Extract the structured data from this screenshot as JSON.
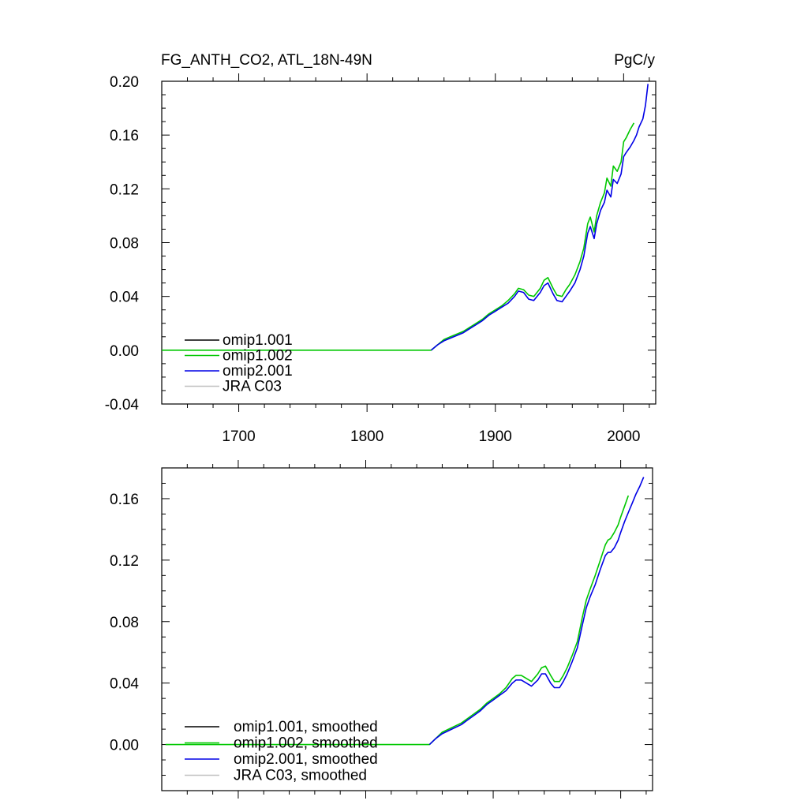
{
  "chart_data": [
    {
      "type": "line",
      "title": "FG_ANTH_CO2, ATL_18N-49N",
      "units": "PgC/y",
      "xlabel": "",
      "ylabel": "",
      "xlim": [
        1640,
        2025
      ],
      "ylim": [
        -0.04,
        0.2
      ],
      "xticks": [
        "1700",
        "1800",
        "1900",
        "2000"
      ],
      "yticks": [
        "-0.04",
        "0.00",
        "0.04",
        "0.08",
        "0.12",
        "0.16",
        "0.20"
      ],
      "legend_position": "bottom-left",
      "series": [
        {
          "name": "omip1.001",
          "color": "#000000",
          "x": [],
          "y": []
        },
        {
          "name": "omip1.002",
          "color": "#00c800",
          "x": [
            1640,
            1850,
            1855,
            1860,
            1865,
            1870,
            1875,
            1880,
            1885,
            1890,
            1895,
            1900,
            1905,
            1910,
            1915,
            1918,
            1922,
            1926,
            1930,
            1935,
            1938,
            1941,
            1945,
            1948,
            1952,
            1955,
            1958,
            1962,
            1966,
            1969,
            1972,
            1974,
            1977,
            1979,
            1982,
            1985,
            1987,
            1990,
            1992,
            1995,
            1998,
            2000,
            2002,
            2005,
            2008
          ],
          "y": [
            0.0,
            0.0,
            0.004,
            0.008,
            0.01,
            0.012,
            0.014,
            0.017,
            0.02,
            0.023,
            0.027,
            0.03,
            0.033,
            0.037,
            0.042,
            0.046,
            0.045,
            0.041,
            0.04,
            0.046,
            0.052,
            0.054,
            0.046,
            0.041,
            0.04,
            0.045,
            0.049,
            0.056,
            0.066,
            0.076,
            0.094,
            0.099,
            0.088,
            0.1,
            0.11,
            0.117,
            0.128,
            0.122,
            0.137,
            0.133,
            0.14,
            0.155,
            0.158,
            0.164,
            0.169
          ]
        },
        {
          "name": "omip2.001",
          "color": "#0000e6",
          "x": [
            1850,
            1855,
            1860,
            1865,
            1870,
            1875,
            1880,
            1885,
            1890,
            1895,
            1900,
            1905,
            1910,
            1915,
            1918,
            1922,
            1926,
            1930,
            1935,
            1938,
            1941,
            1945,
            1948,
            1952,
            1955,
            1958,
            1962,
            1966,
            1969,
            1972,
            1974,
            1977,
            1979,
            1982,
            1985,
            1987,
            1990,
            1992,
            1995,
            1998,
            2000,
            2002,
            2005,
            2008,
            2010,
            2012,
            2015,
            2017,
            2019
          ],
          "y": [
            0.0,
            0.004,
            0.007,
            0.009,
            0.011,
            0.013,
            0.016,
            0.019,
            0.022,
            0.026,
            0.029,
            0.032,
            0.035,
            0.04,
            0.044,
            0.043,
            0.038,
            0.037,
            0.043,
            0.048,
            0.05,
            0.042,
            0.037,
            0.036,
            0.04,
            0.044,
            0.05,
            0.06,
            0.07,
            0.087,
            0.092,
            0.083,
            0.094,
            0.104,
            0.11,
            0.119,
            0.114,
            0.127,
            0.124,
            0.131,
            0.144,
            0.147,
            0.151,
            0.156,
            0.16,
            0.166,
            0.172,
            0.182,
            0.198
          ]
        },
        {
          "name": "JRA C03",
          "color": "#c0c0c0",
          "x": [],
          "y": []
        }
      ]
    },
    {
      "type": "line",
      "title": "",
      "xlabel": "",
      "ylabel": "",
      "xlim": [
        1640,
        2025
      ],
      "ylim": [
        -0.03,
        0.18
      ],
      "xticks": [],
      "yticks": [
        "0.00",
        "0.04",
        "0.08",
        "0.12",
        "0.16"
      ],
      "legend_position": "bottom-left",
      "series": [
        {
          "name": "omip1.001, smoothed",
          "color": "#000000",
          "x": [],
          "y": []
        },
        {
          "name": "omip1.002, smoothed",
          "color": "#00c800",
          "x": [
            1643,
            1850,
            1855,
            1860,
            1865,
            1870,
            1875,
            1880,
            1885,
            1890,
            1895,
            1900,
            1905,
            1910,
            1915,
            1918,
            1922,
            1926,
            1930,
            1935,
            1938,
            1941,
            1945,
            1948,
            1952,
            1955,
            1958,
            1962,
            1966,
            1970,
            1973,
            1976,
            1980,
            1984,
            1988,
            1990,
            1992,
            1995,
            1998,
            2000,
            2003,
            2006
          ],
          "y": [
            0.0,
            0.0,
            0.004,
            0.008,
            0.01,
            0.012,
            0.014,
            0.017,
            0.02,
            0.023,
            0.027,
            0.03,
            0.033,
            0.037,
            0.043,
            0.045,
            0.045,
            0.043,
            0.041,
            0.046,
            0.05,
            0.051,
            0.045,
            0.041,
            0.041,
            0.045,
            0.05,
            0.058,
            0.067,
            0.083,
            0.094,
            0.101,
            0.11,
            0.12,
            0.13,
            0.133,
            0.134,
            0.138,
            0.143,
            0.148,
            0.155,
            0.162
          ]
        },
        {
          "name": "omip2.001, smoothed",
          "color": "#0000e6",
          "x": [
            1850,
            1855,
            1860,
            1865,
            1870,
            1875,
            1880,
            1885,
            1890,
            1895,
            1900,
            1905,
            1910,
            1915,
            1918,
            1922,
            1926,
            1930,
            1935,
            1938,
            1941,
            1945,
            1948,
            1952,
            1955,
            1958,
            1962,
            1966,
            1970,
            1973,
            1976,
            1980,
            1984,
            1988,
            1990,
            1992,
            1995,
            1998,
            2000,
            2003,
            2006,
            2009,
            2012,
            2015,
            2018
          ],
          "y": [
            0.0,
            0.004,
            0.007,
            0.009,
            0.011,
            0.013,
            0.016,
            0.019,
            0.022,
            0.026,
            0.029,
            0.032,
            0.035,
            0.04,
            0.042,
            0.042,
            0.04,
            0.038,
            0.042,
            0.046,
            0.046,
            0.04,
            0.037,
            0.037,
            0.041,
            0.046,
            0.054,
            0.063,
            0.078,
            0.089,
            0.096,
            0.104,
            0.114,
            0.123,
            0.125,
            0.125,
            0.128,
            0.133,
            0.138,
            0.145,
            0.151,
            0.157,
            0.163,
            0.168,
            0.174
          ]
        },
        {
          "name": "JRA C03, smoothed",
          "color": "#c0c0c0",
          "x": [],
          "y": []
        }
      ]
    }
  ]
}
